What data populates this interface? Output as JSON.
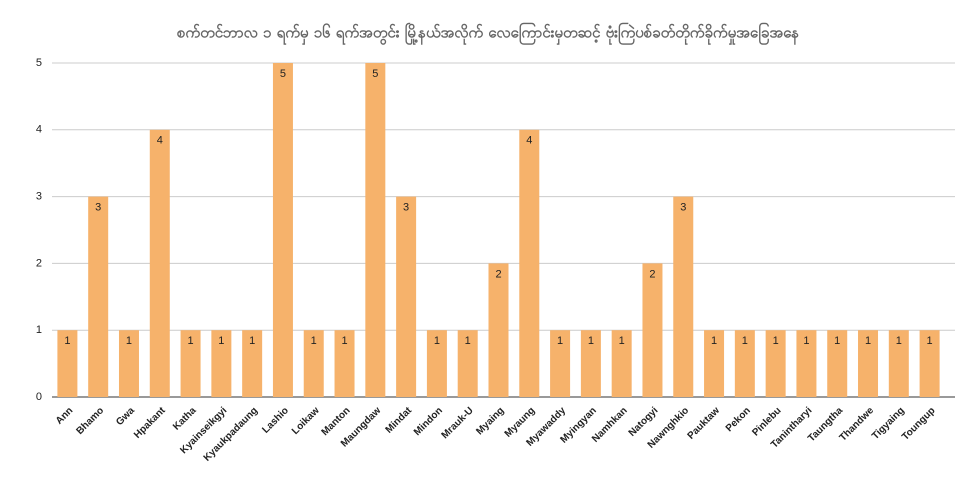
{
  "chart_data": {
    "type": "bar",
    "title": "စက်တင်ဘာလ ၁ ရက်မှ ၁၆ ရက်အတွင်း မြို့နယ်အလိုက် လေကြောင်းမှတဆင့် ဗုံးကြဲပစ်ခတ်တိုက်ခိုက်မှုအခြေအနေ",
    "categories": [
      "Ann",
      "Bhamo",
      "Gwa",
      "Hpakant",
      "Katha",
      "Kyainseikgyi",
      "Kyaukpadaung",
      "Lashio",
      "Loikaw",
      "Manton",
      "Maungdaw",
      "Mindat",
      "Mindon",
      "Mrauk-U",
      "Myaing",
      "Myaung",
      "Myawaddy",
      "Myingyan",
      "Namhkan",
      "Natogyi",
      "Nawnghkio",
      "Pauktaw",
      "Pekon",
      "Pinlebu",
      "Tanintharyi",
      "Taungtha",
      "Thandwe",
      "Tigyaing",
      "Toungup"
    ],
    "values": [
      1,
      3,
      1,
      4,
      1,
      1,
      1,
      5,
      1,
      1,
      5,
      3,
      1,
      1,
      2,
      4,
      1,
      1,
      1,
      2,
      3,
      1,
      1,
      1,
      1,
      1,
      1,
      1,
      1
    ],
    "color": "#f6b26b",
    "ylim": [
      0,
      5
    ],
    "yticks": [
      0,
      1,
      2,
      3,
      4,
      5
    ],
    "grid": true
  }
}
